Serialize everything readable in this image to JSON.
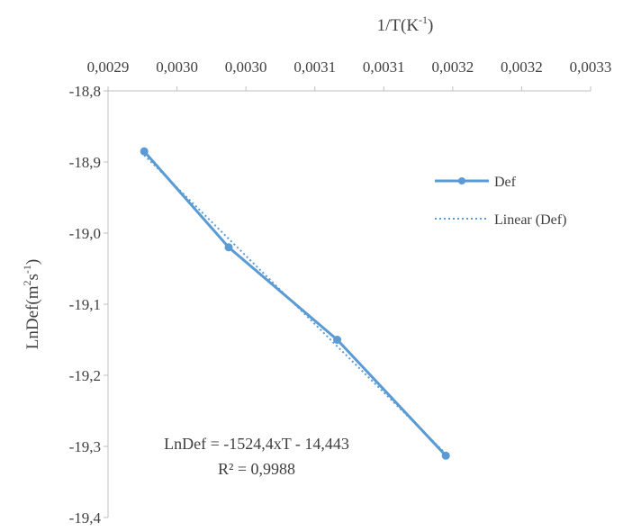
{
  "chart_data": {
    "type": "scatter",
    "x_axis": {
      "label": "1/T(K",
      "label_sup": "-1",
      "label_suffix": ")",
      "position": "top",
      "range": [
        0.0029,
        0.0033
      ],
      "tick_values": [
        0.0029,
        0.00295,
        0.003,
        0.00305,
        0.0031,
        0.00315,
        0.0032,
        0.0033
      ],
      "tick_labels": [
        "0,0029",
        "0,0030",
        "0,0030",
        "0,0031",
        "0,0031",
        "0,0032",
        "0,0032",
        "0,0033"
      ]
    },
    "y_axis": {
      "label_prefix": "LnDef(m",
      "label_sup1": "2",
      "label_mid": "s",
      "label_sup2": "-1",
      "label_suffix": ")",
      "range": [
        -19.4,
        -18.8
      ],
      "tick_values": [
        -18.8,
        -18.9,
        -19.0,
        -19.1,
        -19.2,
        -19.3,
        -19.4
      ],
      "tick_labels": [
        "-18,8",
        "-18,9",
        "-19,0",
        "-19,1",
        "-19,2",
        "-19,3",
        "-19,4"
      ]
    },
    "series": [
      {
        "name": "Def",
        "color": "#5b9bd5",
        "style": "solid-line-markers",
        "points": [
          {
            "x": 0.00293,
            "y": -18.885
          },
          {
            "x": 0.003,
            "y": -19.02
          },
          {
            "x": 0.00309,
            "y": -19.15
          },
          {
            "x": 0.00318,
            "y": -19.313
          }
        ]
      }
    ],
    "trendline": {
      "name": "Linear (Def)",
      "color": "#5b9bd5",
      "style": "dotted",
      "x_from": 0.00293,
      "x_to": 0.00318
    },
    "equation": "LnDef = -1524,4xT - 14,443",
    "r_squared": "R² = 0,9988",
    "legend_position": "right",
    "grid": false
  }
}
